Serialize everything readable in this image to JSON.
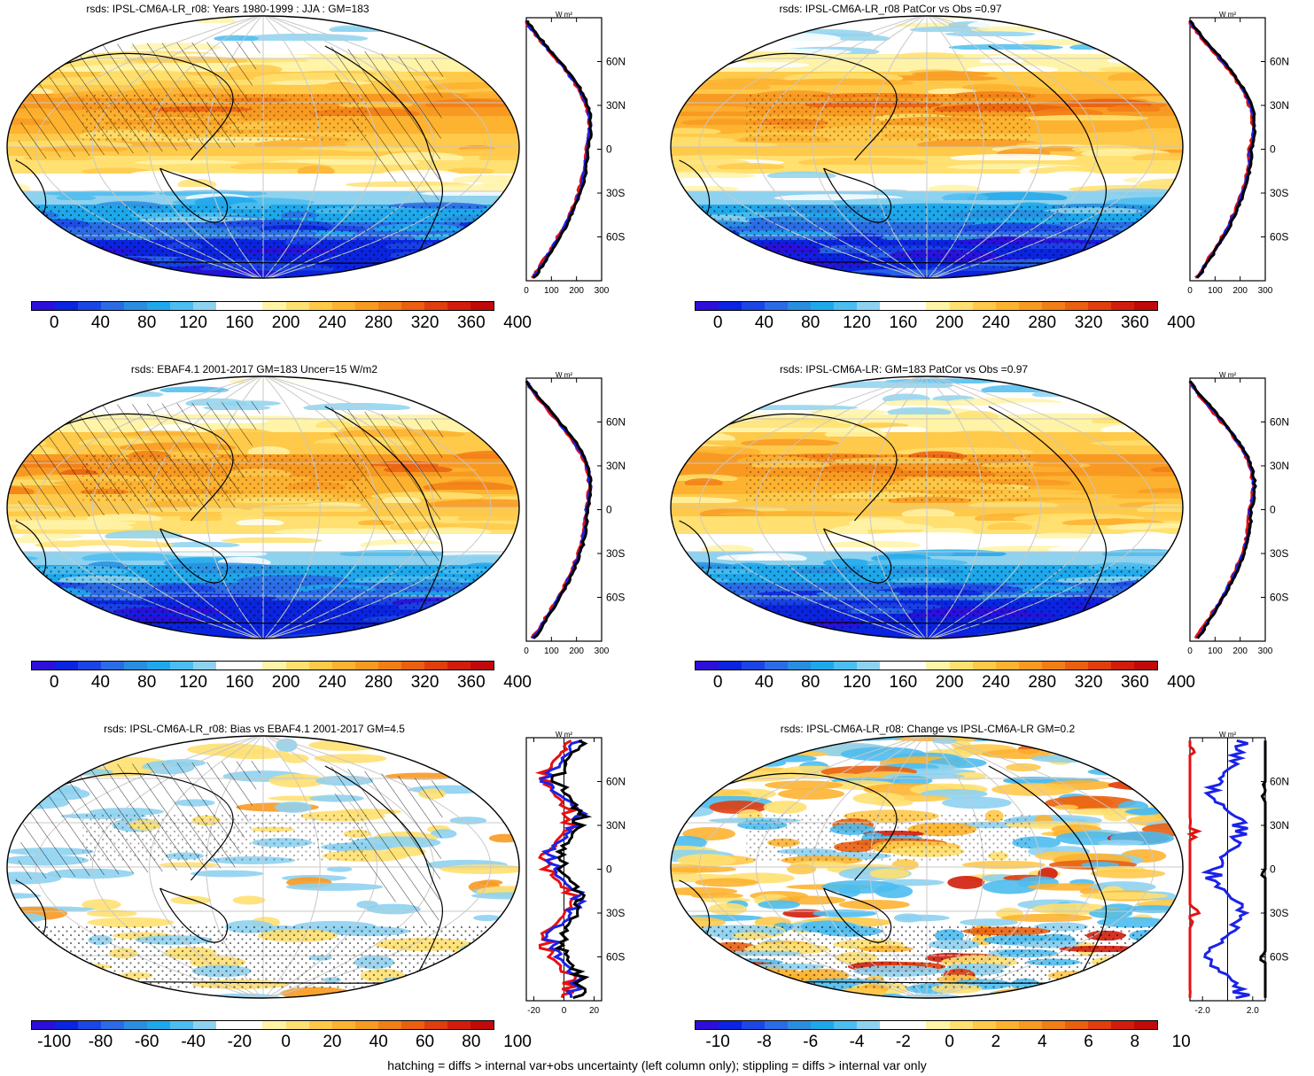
{
  "panels": [
    {
      "title": "rsds: IPSL-CM6A-LR_r08: Years 1980-1999 : JJA : GM=183",
      "kind": "abs",
      "hatch": true,
      "stipple": true,
      "cbar_labels": [
        "0",
        "40",
        "80",
        "120",
        "160",
        "200",
        "240",
        "280",
        "320",
        "360",
        "400"
      ],
      "profile": {
        "xticks": [
          "0",
          "100",
          "200",
          "300"
        ],
        "xmin": 0,
        "xmax": 300,
        "unit": "W m²"
      }
    },
    {
      "title": "rsds: IPSL-CM6A-LR_r08 PatCor vs Obs =0.97",
      "kind": "abs",
      "hatch": false,
      "stipple": true,
      "cbar_labels": [
        "0",
        "40",
        "80",
        "120",
        "160",
        "200",
        "240",
        "280",
        "320",
        "360",
        "400"
      ],
      "profile": {
        "xticks": [
          "0",
          "100",
          "200",
          "300"
        ],
        "xmin": 0,
        "xmax": 300,
        "unit": "W m²"
      }
    },
    {
      "title": "rsds: EBAF4.1 2001-2017 GM=183 Uncer=15 W/m2",
      "kind": "abs",
      "hatch": true,
      "stipple": true,
      "cbar_labels": [
        "0",
        "40",
        "80",
        "120",
        "160",
        "200",
        "240",
        "280",
        "320",
        "360",
        "400"
      ],
      "profile": {
        "xticks": [
          "0",
          "100",
          "200",
          "300"
        ],
        "xmin": 0,
        "xmax": 300,
        "unit": "W m²"
      }
    },
    {
      "title": "rsds: IPSL-CM6A-LR: GM=183 PatCor vs Obs =0.97",
      "kind": "abs",
      "hatch": false,
      "stipple": true,
      "cbar_labels": [
        "0",
        "40",
        "80",
        "120",
        "160",
        "200",
        "240",
        "280",
        "320",
        "360",
        "400"
      ],
      "profile": {
        "xticks": [
          "0",
          "100",
          "200",
          "300"
        ],
        "xmin": 0,
        "xmax": 300,
        "unit": "W m²"
      }
    },
    {
      "title": "rsds: IPSL-CM6A-LR_r08: Bias vs EBAF4.1 2001-2017 GM=4.5",
      "kind": "bias",
      "hatch": true,
      "stipple": true,
      "cbar_labels": [
        "-100",
        "-80",
        "-60",
        "-40",
        "-20",
        "0",
        "20",
        "40",
        "60",
        "80",
        "100"
      ],
      "profile": {
        "xticks": [
          "-20",
          "0",
          "20"
        ],
        "xmin": -25,
        "xmax": 25,
        "unit": "W m²"
      }
    },
    {
      "title": "rsds: IPSL-CM6A-LR_r08: Change vs IPSL-CM6A-LR GM=0.2",
      "kind": "change",
      "hatch": false,
      "stipple": true,
      "cbar_labels": [
        "-10",
        "-8",
        "-6",
        "-4",
        "-2",
        "0",
        "2",
        "4",
        "6",
        "8",
        "10"
      ],
      "profile": {
        "xticks": [
          "-2.0",
          "2.0"
        ],
        "xmin": -3,
        "xmax": 3,
        "unit": "W m²"
      }
    }
  ],
  "lat_labels": [
    "60N",
    "30N",
    "0",
    "30S",
    "60S"
  ],
  "colors": {
    "palette": [
      "#2c0fd9",
      "#0a24e0",
      "#1c45e6",
      "#2b6be6",
      "#2a8ee0",
      "#1ea8ec",
      "#4cbdf0",
      "#8ed2ef",
      "#ffffff",
      "#ffffff",
      "#fff3a8",
      "#ffe070",
      "#ffc94a",
      "#fdb230",
      "#f89a22",
      "#f27e16",
      "#ea5f10",
      "#e03e0e",
      "#d21d0c",
      "#c00a0a"
    ],
    "profile_model": "#000000",
    "profile_obs": "#e81010",
    "profile_other": "#1a22e8"
  },
  "footer": "hatching = diffs > internal var+obs uncertainty (left column only); stippling = diffs > internal var only"
}
